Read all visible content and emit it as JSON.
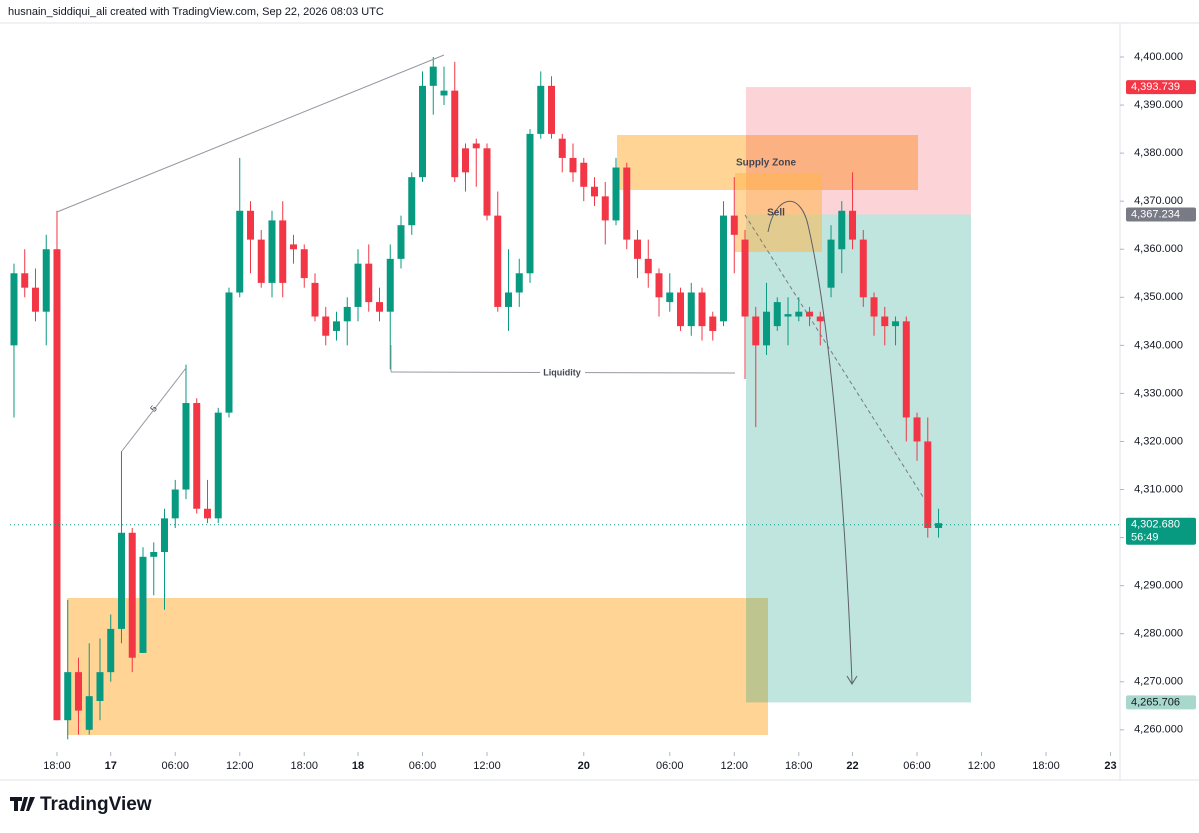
{
  "header": "husnain_siddiqui_ali created with TradingView.com, Sep 22, 2026 08:03 UTC",
  "logo": "TradingView",
  "chart_data": {
    "type": "candlestick",
    "up_color": "#089981",
    "down_color": "#f23645",
    "open": [
      4340,
      4355,
      4352,
      4347,
      4360,
      4262,
      4272,
      4260,
      4266,
      4272,
      4281,
      4301,
      4276,
      4296,
      4297,
      4304,
      4310,
      4328,
      4306,
      4304,
      4326,
      4351,
      4368,
      4362,
      4353,
      4366,
      4361,
      4360,
      4353,
      4346,
      4343,
      4345,
      4348,
      4357,
      4349,
      4347,
      4358,
      4365,
      4375,
      4394,
      4392,
      4393,
      4381,
      4382,
      4381,
      4367,
      4348,
      4351,
      4355,
      4384,
      4394,
      4383,
      4379,
      4378,
      4373,
      4371,
      4366,
      4377,
      4362,
      4358,
      4355,
      4349,
      4351,
      4344,
      4351,
      4346,
      4345,
      4367,
      4362,
      4346,
      4340,
      4344,
      4346,
      4346,
      4347,
      4346,
      4352,
      4360,
      4368,
      4362,
      4350,
      4346,
      4344,
      4345,
      4325,
      4320,
      4302
    ],
    "high": [
      4357,
      4360,
      4356,
      4363,
      4368,
      4287,
      4275,
      4278,
      4279,
      4284,
      4318,
      4302,
      4298,
      4299,
      4306,
      4312,
      4336,
      4329,
      4312,
      4327,
      4352,
      4379,
      4370,
      4364,
      4368,
      4370,
      4363,
      4361,
      4355,
      4348,
      4347,
      4350,
      4360,
      4361,
      4352,
      4361,
      4367,
      4376,
      4397,
      4400,
      4398,
      4399,
      4382,
      4383,
      4382,
      4372,
      4360,
      4358,
      4385,
      4397,
      4396,
      4384,
      4382,
      4379,
      4375,
      4374,
      4379,
      4378,
      4364,
      4362,
      4356,
      4355,
      4352,
      4353,
      4352,
      4347,
      4370,
      4375,
      4364,
      4348,
      4353,
      4350,
      4350,
      4350,
      4348,
      4347,
      4365,
      4370,
      4376,
      4364,
      4351,
      4348,
      4346,
      4346,
      4326,
      4325,
      4306
    ],
    "low": [
      4325,
      4350,
      4345,
      4340,
      4262,
      4258,
      4259,
      4259,
      4262,
      4270,
      4278,
      4272,
      4276,
      4288,
      4285,
      4302,
      4308,
      4305,
      4303,
      4303,
      4325,
      4350,
      4355,
      4352,
      4350,
      4350,
      4357,
      4352,
      4345,
      4340,
      4341,
      4340,
      4345,
      4347,
      4345,
      4335,
      4356,
      4363,
      4374,
      4388,
      4390,
      4374,
      4372,
      4373,
      4366,
      4347,
      4343,
      4348,
      4353,
      4383,
      4383,
      4376,
      4374,
      4370,
      4369,
      4361,
      4365,
      4360,
      4354,
      4352,
      4346,
      4347,
      4343,
      4342,
      4341,
      4341,
      4344,
      4355,
      4333,
      4323,
      4338,
      4343,
      4340,
      4345,
      4344,
      4340,
      4350,
      4355,
      4360,
      4348,
      4342,
      4340,
      4340,
      4320,
      4316,
      4300,
      4300
    ],
    "close": [
      4355,
      4352,
      4347,
      4360,
      4262,
      4272,
      4264,
      4267,
      4272,
      4281,
      4301,
      4275,
      4296,
      4297,
      4304,
      4310,
      4328,
      4306,
      4304,
      4326,
      4351,
      4368,
      4362,
      4353,
      4366,
      4353,
      4360,
      4354,
      4346,
      4342,
      4345,
      4348,
      4357,
      4349,
      4347,
      4358,
      4365,
      4375,
      4394,
      4398,
      4393,
      4375,
      4376,
      4381,
      4367,
      4348,
      4351,
      4355,
      4384,
      4394,
      4384,
      4379,
      4376,
      4373,
      4371,
      4366,
      4377,
      4362,
      4358,
      4355,
      4350,
      4351,
      4344,
      4351,
      4344,
      4343,
      4367,
      4363,
      4346,
      4340,
      4347,
      4349,
      4346.5,
      4347,
      4346,
      4345,
      4362,
      4368,
      4362,
      4350,
      4346,
      4344,
      4345,
      4325,
      4320,
      4302,
      4303
    ],
    "xlim": [
      -0.37,
      102.88
    ],
    "xticks": [
      {
        "value": 4,
        "label": "18:00"
      },
      {
        "value": 9,
        "label": "17"
      },
      {
        "value": 15,
        "label": "06:00"
      },
      {
        "value": 21,
        "label": "12:00"
      },
      {
        "value": 27,
        "label": "18:00"
      },
      {
        "value": 32,
        "label": "18"
      },
      {
        "value": 38,
        "label": "06:00"
      },
      {
        "value": 44,
        "label": "12:00"
      },
      {
        "value": 53,
        "label": "20"
      },
      {
        "value": 61,
        "label": "06:00"
      },
      {
        "value": 67,
        "label": "12:00"
      },
      {
        "value": 73,
        "label": "18:00"
      },
      {
        "value": 78,
        "label": "22"
      },
      {
        "value": 84,
        "label": "06:00"
      },
      {
        "value": 90,
        "label": "12:00"
      },
      {
        "value": 96,
        "label": "18:00"
      },
      {
        "value": 102,
        "label": "23"
      }
    ],
    "ylim": [
      4255.8,
      4407.7
    ],
    "yticks": [
      {
        "value": 4260,
        "label": "4,260.000"
      },
      {
        "value": 4270,
        "label": "4,270.000"
      },
      {
        "value": 4280,
        "label": "4,280.000"
      },
      {
        "value": 4290,
        "label": "4,290.000"
      },
      {
        "value": 4300,
        "label": "4,300.000"
      },
      {
        "value": 4310,
        "label": "4,310.000"
      },
      {
        "value": 4320,
        "label": "4,320.000"
      },
      {
        "value": 4330,
        "label": "4,330.000"
      },
      {
        "value": 4340,
        "label": "4,340.000"
      },
      {
        "value": 4350,
        "label": "4,350.000"
      },
      {
        "value": 4360,
        "label": "4,360.000"
      },
      {
        "value": 4370,
        "label": "4,370.000"
      },
      {
        "value": 4380,
        "label": "4,380.000"
      },
      {
        "value": 4390,
        "label": "4,390.000"
      },
      {
        "value": 4400,
        "label": "4,400.000"
      }
    ],
    "position": {
      "stop": {
        "value": 4393.739,
        "label": "4,393.739"
      },
      "entry": {
        "value": 4367.234,
        "label": "4,367.234"
      },
      "target": {
        "value": 4265.706,
        "label": "4,265.706"
      }
    },
    "last_price": {
      "value": 4302.68,
      "label": "4,302.680"
    },
    "countdown": "56:49",
    "annotations": {
      "supply": "Supply Zone",
      "sell": "Sell",
      "liquidity": "Liquidity",
      "wave": "5"
    }
  }
}
